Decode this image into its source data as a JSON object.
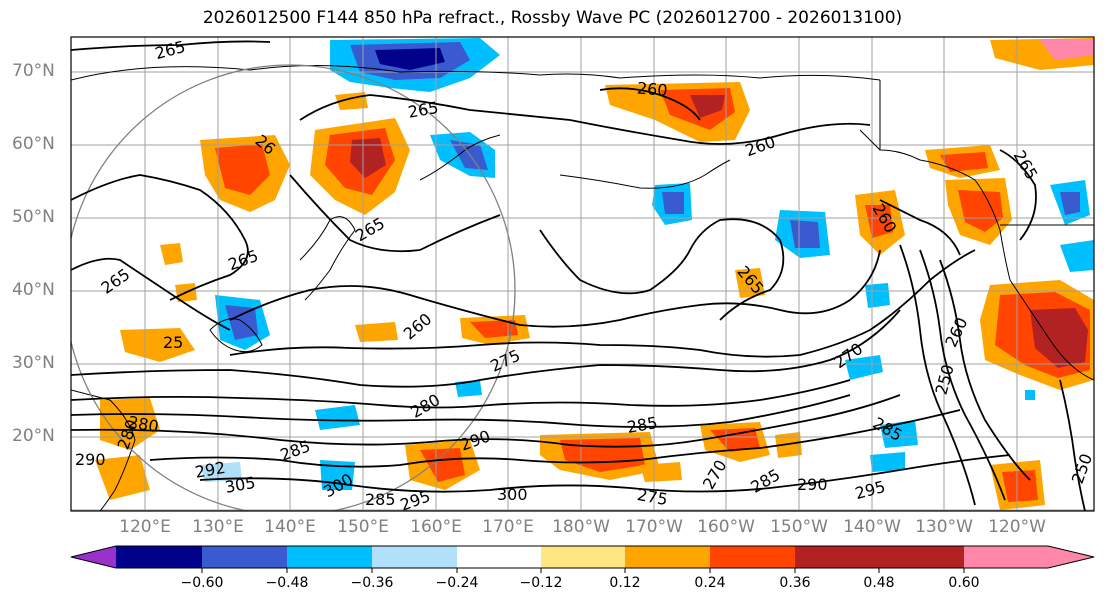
{
  "title": "2026012500 F144 850 hPa refract., Rossby Wave PC (2026012700 - 2026013100)",
  "lat_labels": [
    "70°N",
    "60°N",
    "50°N",
    "40°N",
    "30°N",
    "20°N"
  ],
  "lon_labels": [
    "120°E",
    "130°E",
    "140°E",
    "150°E",
    "160°E",
    "170°E",
    "180°W",
    "170°W",
    "160°W",
    "150°W",
    "140°W",
    "130°W",
    "120°W"
  ],
  "colorbar": {
    "colors": [
      "#9932cc",
      "#00008b",
      "#3a5ad0",
      "#00bfff",
      "#b0e0fa",
      "#ffffff",
      "#ffe680",
      "#ffa500",
      "#ff4500",
      "#b22222",
      "#ff88aa"
    ],
    "ticks": [
      "−0.60",
      "−0.48",
      "−0.36",
      "−0.24",
      "−0.12",
      "0.12",
      "0.24",
      "0.36",
      "0.48",
      "0.60"
    ]
  },
  "contour_labels": [
    {
      "text": "265",
      "rot": -15
    },
    {
      "text": "265",
      "rot": -10
    },
    {
      "text": "260",
      "rot": 5
    },
    {
      "text": "260",
      "rot": -20
    },
    {
      "text": "265",
      "rot": -60
    },
    {
      "text": "26",
      "rot": 40
    },
    {
      "text": "265",
      "rot": -30
    },
    {
      "text": "265",
      "rot": -20
    },
    {
      "text": "265",
      "rot": -35
    },
    {
      "text": "260",
      "rot": -40
    },
    {
      "text": "265",
      "rot": 50
    },
    {
      "text": "260",
      "rot": 60
    },
    {
      "text": "275",
      "rot": -25
    },
    {
      "text": "270",
      "rot": -35
    },
    {
      "text": "260",
      "rot": -65
    },
    {
      "text": "250",
      "rot": -75
    },
    {
      "text": "25",
      "rot": 0
    },
    {
      "text": "280",
      "rot": -30
    },
    {
      "text": "280",
      "rot": 10
    },
    {
      "text": "285",
      "rot": -20
    },
    {
      "text": "285",
      "rot": -10
    },
    {
      "text": "290",
      "rot": -20
    },
    {
      "text": "292",
      "rot": -10
    },
    {
      "text": "305",
      "rot": -10
    },
    {
      "text": "300",
      "rot": -30
    },
    {
      "text": "295",
      "rot": -20
    },
    {
      "text": "300",
      "rot": 0
    },
    {
      "text": "275",
      "rot": 10
    },
    {
      "text": "270",
      "rot": -60
    },
    {
      "text": "285",
      "rot": -30
    },
    {
      "text": "290",
      "rot": 0
    },
    {
      "text": "295",
      "rot": -15
    },
    {
      "text": "285",
      "rot": 30
    },
    {
      "text": "250",
      "rot": -70
    },
    {
      "text": "280",
      "rot": -70
    },
    {
      "text": "290",
      "rot": 0
    },
    {
      "text": "285",
      "rot": 0
    }
  ]
}
